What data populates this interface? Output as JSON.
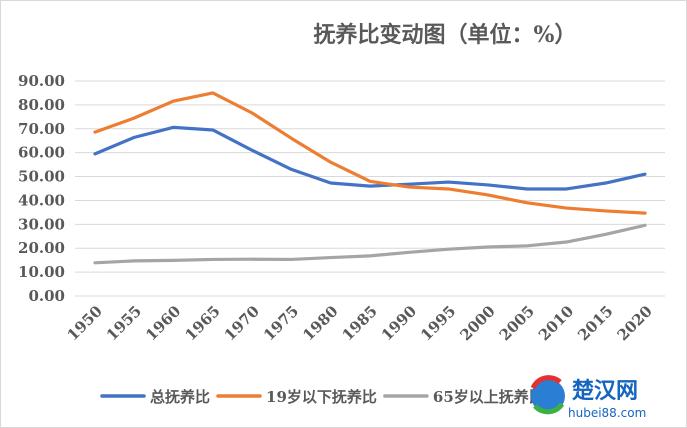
{
  "chart_data": {
    "type": "line",
    "title": "抚养比变动图（单位：%）",
    "xlabel": "",
    "ylabel": "",
    "x": [
      1950,
      1955,
      1960,
      1965,
      1970,
      1975,
      1980,
      1985,
      1990,
      1995,
      2000,
      2005,
      2010,
      2015,
      2020
    ],
    "y_ticks": [
      "0.00",
      "10.00",
      "20.00",
      "30.00",
      "40.00",
      "50.00",
      "60.00",
      "70.00",
      "80.00",
      "90.00"
    ],
    "ylim": [
      0,
      90
    ],
    "grid": true,
    "legend_position": "bottom",
    "series": [
      {
        "name": "总抚养比",
        "color": "#4472c4",
        "values": [
          59.5,
          66.4,
          70.6,
          69.5,
          61.0,
          53.0,
          47.3,
          46.0,
          46.8,
          47.7,
          46.5,
          44.8,
          44.8,
          47.3,
          51.0
        ]
      },
      {
        "name": "19岁以下抚养比",
        "color": "#ed7d31",
        "values": [
          68.6,
          74.5,
          81.6,
          85.0,
          76.6,
          66.0,
          56.0,
          48.0,
          45.6,
          44.8,
          42.3,
          39.0,
          36.8,
          35.6,
          34.7
        ]
      },
      {
        "name": "65岁以上抚养比",
        "color": "#a5a5a5",
        "values": [
          13.9,
          14.7,
          14.9,
          15.3,
          15.4,
          15.3,
          16.1,
          16.8,
          18.3,
          19.6,
          20.5,
          21.0,
          22.6,
          25.8,
          29.6
        ]
      }
    ]
  },
  "watermark": {
    "brand": "楚汉网",
    "domain": "hubei88.com"
  }
}
